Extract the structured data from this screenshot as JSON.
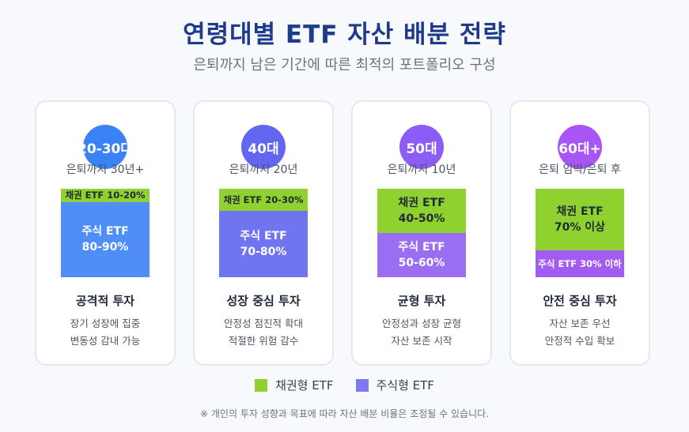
{
  "header": {
    "title": "연령대별 ETF 자산 배분 전략",
    "subtitle": "은퇴까지 남은 기간에 따른 최적의 포트폴리오 구성"
  },
  "colors": {
    "bond": "#8fd12f",
    "stock": "#7b78f0"
  },
  "cards": [
    {
      "age": "20-30대",
      "age_color": "#3b82f6",
      "period": "은퇴까지 30년+",
      "bond_share": 0.15,
      "stock_share": 0.85,
      "bond_line1": "채권 ETF 10-20%",
      "bond_line2": "",
      "stock_line1": "주식 ETF",
      "stock_line2": "80-90%",
      "stock_color": "#4f8ef7",
      "strategy": "공격적 투자",
      "desc_line1": "장기 성장에 집중",
      "desc_line2": "변동성 감내 가능"
    },
    {
      "age": "40대",
      "age_color": "#6366f1",
      "period": "은퇴까지 20년",
      "bond_share": 0.25,
      "stock_share": 0.75,
      "bond_line1": "채권 ETF 20-30%",
      "bond_line2": "",
      "stock_line1": "주식 ETF",
      "stock_line2": "70-80%",
      "stock_color": "#6f74f0",
      "strategy": "성장 중심 투자",
      "desc_line1": "안정성 점진적 확대",
      "desc_line2": "적절한 위험 감수"
    },
    {
      "age": "50대",
      "age_color": "#8b5cf6",
      "period": "은퇴까지 10년",
      "bond_share": 0.5,
      "stock_share": 0.5,
      "bond_line1": "채권 ETF",
      "bond_line2": "40-50%",
      "stock_line1": "주식 ETF",
      "stock_line2": "50-60%",
      "stock_color": "#9a6ef3",
      "strategy": "균형 투자",
      "desc_line1": "안정성과 성장 균형",
      "desc_line2": "자산 보존 시작"
    },
    {
      "age": "60대+",
      "age_color": "#a855f7",
      "period": "은퇴 임박/은퇴 후",
      "bond_share": 0.7,
      "stock_share": 0.3,
      "bond_line1": "채권 ETF",
      "bond_line2": "70% 이상",
      "stock_line1": "주식 ETF 30% 이하",
      "stock_line2": "",
      "stock_color": "#a35cf2",
      "strategy": "안전 중심 투자",
      "desc_line1": "자산 보존 우선",
      "desc_line2": "안정적 수입 확보"
    }
  ],
  "legend": {
    "bond_label": "채권형 ETF",
    "stock_label": "주식형 ETF"
  },
  "note": "※ 개인의 투자 성향과 목표에 따라 자산 배분 비율은 조정될 수 있습니다."
}
